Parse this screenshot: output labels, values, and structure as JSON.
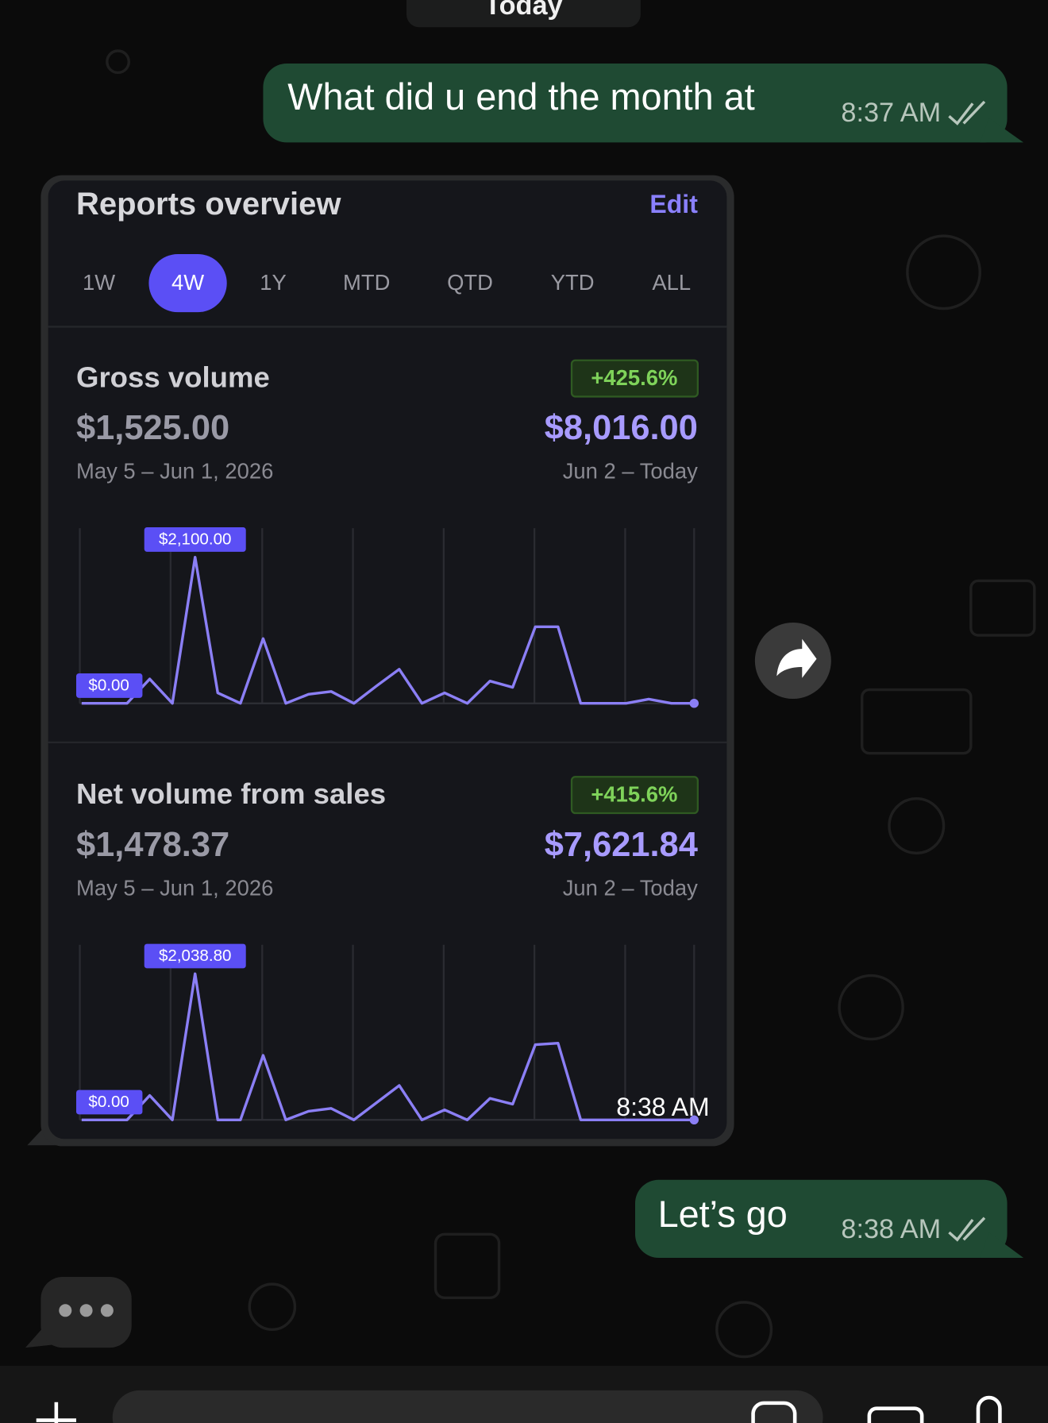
{
  "date_divider": "Today",
  "messages": [
    {
      "text": "What did u end the month at",
      "time": "8:37 AM"
    },
    {
      "text": "Let’s go",
      "time": "8:38 AM"
    }
  ],
  "card": {
    "title": "Reports overview",
    "edit": "Edit",
    "tabs": [
      "1W",
      "4W",
      "1Y",
      "MTD",
      "QTD",
      "YTD",
      "ALL"
    ],
    "active_tab": 1,
    "time": "8:38 AM",
    "charts": [
      {
        "type": "line",
        "title": "Gross volume",
        "change": "+425.6%",
        "previous": "$1,525.00",
        "previous_period": "May 5 – Jun 1, 2026",
        "current": "$8,016.00",
        "current_period": "Jun 2 – Today",
        "color": "#8b7ff5",
        "ylim": [
          0,
          2100
        ],
        "min_label": {
          "value": 0,
          "label": "$0.00"
        },
        "max_label": {
          "value": 2100,
          "label": "$2,100.00"
        },
        "values": [
          0,
          0,
          0,
          350,
          0,
          2100,
          150,
          0,
          930,
          0,
          130,
          170,
          0,
          250,
          490,
          0,
          150,
          0,
          320,
          230,
          1100,
          1100,
          0,
          0,
          0,
          60,
          0,
          0
        ]
      },
      {
        "type": "line",
        "title": "Net volume from sales",
        "change": "+415.6%",
        "previous": "$1,478.37",
        "previous_period": "May 5 – Jun 1, 2026",
        "current": "$7,621.84",
        "current_period": "Jun 2 – Today",
        "color": "#8b7ff5",
        "ylim": [
          0,
          2038.8
        ],
        "min_label": {
          "value": 0,
          "label": "$0.00"
        },
        "max_label": {
          "value": 2038.8,
          "label": "$2,038.80"
        },
        "values": [
          0,
          0,
          0,
          340,
          0,
          2038.8,
          0,
          0,
          900,
          0,
          120,
          160,
          0,
          240,
          480,
          0,
          140,
          0,
          300,
          220,
          1050,
          1070,
          0,
          0,
          0,
          0,
          0,
          0
        ]
      }
    ]
  }
}
